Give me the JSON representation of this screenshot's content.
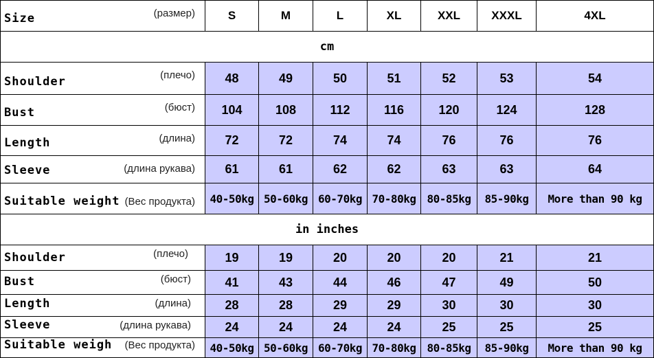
{
  "header": {
    "label": "Size",
    "label_ru": "(размер)",
    "sizes": [
      "S",
      "M",
      "L",
      "XL",
      "XXL",
      "XXXL",
      "4XL"
    ]
  },
  "sections": [
    {
      "title": "cm",
      "rows": [
        {
          "label": "Shoulder",
          "label_ru": "(плечо)",
          "values": [
            "48",
            "49",
            "50",
            "51",
            "52",
            "53",
            "54"
          ]
        },
        {
          "label": "Bust",
          "label_ru": "(бюст)",
          "values": [
            "104",
            "108",
            "112",
            "116",
            "120",
            "124",
            "128"
          ]
        },
        {
          "label": "Length",
          "label_ru": "(длина)",
          "values": [
            "72",
            "72",
            "74",
            "74",
            "76",
            "76",
            "76"
          ]
        },
        {
          "label": "Sleeve",
          "label_ru": "(длина рукава)",
          "values": [
            "61",
            "61",
            "62",
            "62",
            "63",
            "63",
            "64"
          ]
        },
        {
          "label": "Suitable weight",
          "label_ru": "(Вес продукта)",
          "values": [
            "40-50kg",
            "50-60kg",
            "60-70kg",
            "70-80kg",
            "80-85kg",
            "85-90kg",
            "More than 90 kg"
          ]
        }
      ]
    },
    {
      "title": "in inches",
      "rows": [
        {
          "label": "Shoulder",
          "label_ru": "(плечо)",
          "values": [
            "19",
            "19",
            "20",
            "20",
            "20",
            "21",
            "21"
          ]
        },
        {
          "label": "Bust",
          "label_ru": "(бюст)",
          "values": [
            "41",
            "43",
            "44",
            "46",
            "47",
            "49",
            "50"
          ]
        },
        {
          "label": "Length",
          "label_ru": "(длина)",
          "values": [
            "28",
            "28",
            "29",
            "29",
            "30",
            "30",
            "30"
          ]
        },
        {
          "label": "Sleeve",
          "label_ru": "(длина рукава)",
          "values": [
            "24",
            "24",
            "24",
            "24",
            "25",
            "25",
            "25"
          ]
        },
        {
          "label": "Suitable weigh",
          "label_ru": "(Вес продукта)",
          "values": [
            "40-50kg",
            "50-60kg",
            "60-70kg",
            "70-80kg",
            "80-85kg",
            "85-90kg",
            "More than 90 kg"
          ]
        }
      ]
    }
  ],
  "colors": {
    "cell_fill": "#ccccff",
    "border": "#000000"
  }
}
